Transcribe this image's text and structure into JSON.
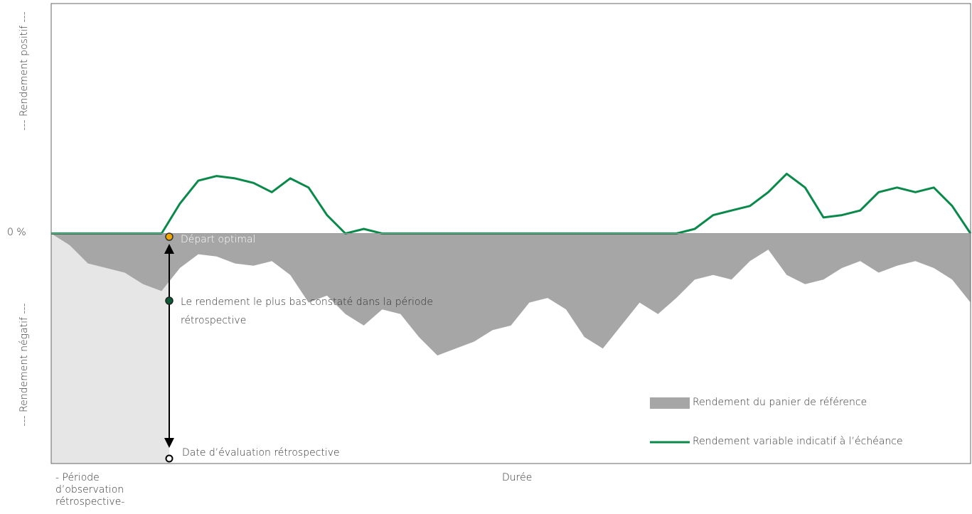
{
  "chart_data": {
    "type": "line",
    "x_label": "Durée",
    "lookback_label": "- Période d’observation rétrospective-",
    "y_label_positive": "--- Rendement positif ---",
    "y_label_negative": "--- Rendement négatif ---",
    "annotations": [
      "Départ optimal",
      "Le rendement le plus bas constaté dans la période rétrospective",
      "Date d’évaluation rétrospective"
    ],
    "x": [
      0,
      2,
      4,
      6,
      8,
      10,
      12,
      14,
      16,
      18,
      20,
      22,
      24,
      26,
      28,
      30,
      32,
      34,
      36,
      38,
      40,
      42,
      44,
      46,
      48,
      50,
      52,
      54,
      56,
      58,
      60,
      62,
      64,
      66,
      68,
      70,
      72,
      74,
      76,
      78,
      80,
      82,
      84,
      86,
      88,
      90,
      92,
      94,
      96,
      98,
      100
    ],
    "xlim": [
      0,
      100
    ],
    "ylim": [
      -100,
      100
    ],
    "yticks": [
      {
        "value": 0,
        "label": "0 %"
      }
    ],
    "series": [
      {
        "name": "Rendement du panier de référence",
        "color": "#a6a6a6",
        "style": "area",
        "values": [
          0,
          -5,
          -13,
          -15,
          -17,
          -22,
          -25,
          -15,
          -9,
          -10,
          -13,
          -14,
          -12,
          -18,
          -30,
          -27,
          -35,
          -40,
          -33,
          -35,
          -45,
          -53,
          -50,
          -47,
          -42,
          -40,
          -30,
          -28,
          -33,
          -45,
          -50,
          -40,
          -30,
          -35,
          -28,
          -20,
          -18,
          -20,
          -12,
          -7,
          -18,
          -22,
          -20,
          -15,
          -12,
          -17,
          -14,
          -12,
          -15,
          -20,
          -30
        ]
      },
      {
        "name": "Rendement variable indicatif à l’échéance",
        "color": "#0a8a4a",
        "style": "line",
        "values": [
          0,
          0,
          0,
          0,
          0,
          0,
          0,
          13,
          23,
          25,
          24,
          22,
          18,
          24,
          20,
          8,
          0,
          2,
          0,
          0,
          0,
          0,
          0,
          0,
          0,
          0,
          0,
          0,
          0,
          0,
          0,
          0,
          0,
          0,
          0,
          2,
          8,
          10,
          12,
          18,
          26,
          20,
          7,
          8,
          10,
          18,
          20,
          18,
          20,
          12,
          0
        ]
      }
    ]
  }
}
